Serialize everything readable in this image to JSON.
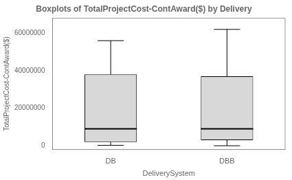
{
  "chart_data": {
    "type": "box",
    "title": "Boxplots of TotalProjectCost-ContAward($) by Delivery",
    "xlabel": "DeliverySystem",
    "ylabel": "TotalProjectCost-ContAward($)",
    "categories": [
      "DB",
      "DBB"
    ],
    "stats": [
      {
        "whislo": 200000,
        "q1": 2000000,
        "med": 9000000,
        "q3": 38000000,
        "whishi": 56000000
      },
      {
        "whislo": 0,
        "q1": 3000000,
        "med": 9000000,
        "q3": 37000000,
        "whishi": 62000000
      }
    ],
    "color": "#d8d8d8",
    "ylim": [
      -2000000,
      68000000
    ],
    "yticks": [
      0,
      20000000,
      40000000,
      60000000
    ],
    "grid": false
  }
}
